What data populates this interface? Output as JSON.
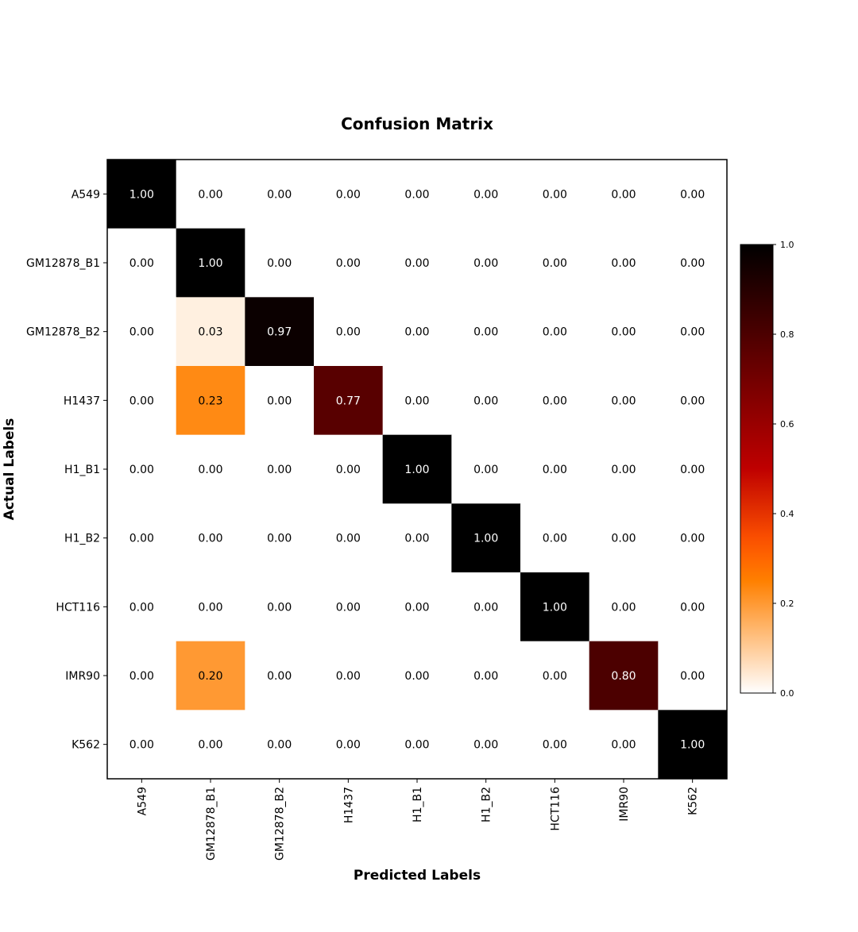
{
  "chart_data": {
    "type": "heatmap",
    "title": "Confusion Matrix",
    "xlabel": "Predicted Labels",
    "ylabel": "Actual Labels",
    "x_categories": [
      "A549",
      "GM12878_B1",
      "GM12878_B2",
      "H1437",
      "H1_B1",
      "H1_B2",
      "HCT116",
      "IMR90",
      "K562"
    ],
    "y_categories": [
      "A549",
      "GM12878_B1",
      "GM12878_B2",
      "H1437",
      "H1_B1",
      "H1_B2",
      "HCT116",
      "IMR90",
      "K562"
    ],
    "values": [
      [
        1.0,
        0.0,
        0.0,
        0.0,
        0.0,
        0.0,
        0.0,
        0.0,
        0.0
      ],
      [
        0.0,
        1.0,
        0.0,
        0.0,
        0.0,
        0.0,
        0.0,
        0.0,
        0.0
      ],
      [
        0.0,
        0.03,
        0.97,
        0.0,
        0.0,
        0.0,
        0.0,
        0.0,
        0.0
      ],
      [
        0.0,
        0.23,
        0.0,
        0.77,
        0.0,
        0.0,
        0.0,
        0.0,
        0.0
      ],
      [
        0.0,
        0.0,
        0.0,
        0.0,
        1.0,
        0.0,
        0.0,
        0.0,
        0.0
      ],
      [
        0.0,
        0.0,
        0.0,
        0.0,
        0.0,
        1.0,
        0.0,
        0.0,
        0.0
      ],
      [
        0.0,
        0.0,
        0.0,
        0.0,
        0.0,
        0.0,
        1.0,
        0.0,
        0.0
      ],
      [
        0.0,
        0.2,
        0.0,
        0.0,
        0.0,
        0.0,
        0.0,
        0.8,
        0.0
      ],
      [
        0.0,
        0.0,
        0.0,
        0.0,
        0.0,
        0.0,
        0.0,
        0.0,
        1.0
      ]
    ],
    "value_format_decimals": 2,
    "colormap": "gist_heat_r",
    "colorbar": {
      "range": [
        0.0,
        1.0
      ],
      "ticks": [
        0.0,
        0.2,
        0.4,
        0.6,
        0.8,
        1.0
      ],
      "tick_labels": [
        "0.0",
        "0.2",
        "0.4",
        "0.6",
        "0.8",
        "1.0"
      ]
    },
    "grid": false
  }
}
